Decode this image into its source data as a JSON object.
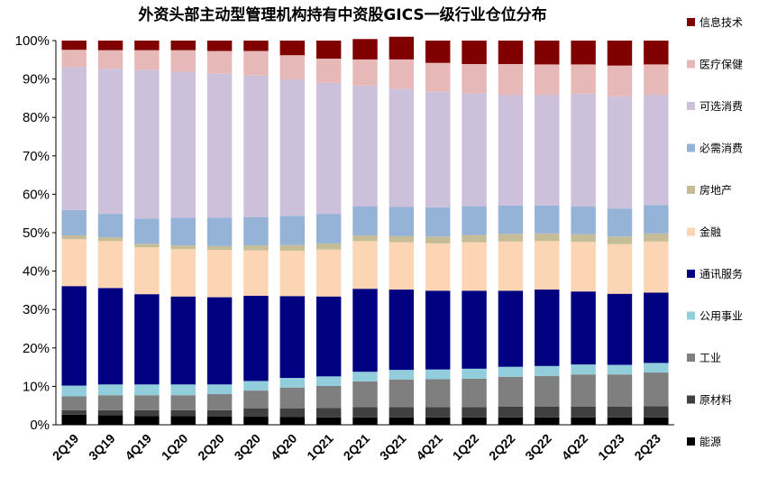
{
  "chart_data": {
    "type": "bar",
    "stacked": true,
    "title": "外资头部主动型管理机构持有中资股GICS一级行业仓位分布",
    "xlabel": "",
    "ylabel": "",
    "ylim": [
      0,
      100
    ],
    "y_ticks": [
      "0%",
      "10%",
      "20%",
      "30%",
      "40%",
      "50%",
      "60%",
      "70%",
      "80%",
      "90%",
      "100%"
    ],
    "categories": [
      "2Q19",
      "3Q19",
      "4Q19",
      "1Q20",
      "2Q20",
      "3Q20",
      "4Q20",
      "1Q21",
      "2Q21",
      "3Q21",
      "4Q21",
      "1Q22",
      "2Q22",
      "3Q22",
      "4Q22",
      "1Q23",
      "2Q23"
    ],
    "legend_position": "right",
    "series": [
      {
        "name": "能源",
        "color": "#000000",
        "values": [
          2.6,
          2.5,
          2.3,
          2.3,
          2.2,
          2.1,
          2.0,
          1.9,
          1.9,
          1.9,
          1.9,
          1.9,
          1.9,
          1.9,
          1.9,
          1.9,
          1.9
        ]
      },
      {
        "name": "原材料",
        "color": "#404040",
        "values": [
          1.2,
          1.3,
          1.5,
          1.5,
          1.6,
          2.2,
          2.3,
          2.5,
          2.7,
          2.7,
          2.7,
          2.7,
          2.8,
          2.8,
          2.8,
          2.8,
          2.9
        ]
      },
      {
        "name": "工业",
        "color": "#7f7f7f",
        "values": [
          3.6,
          3.9,
          3.9,
          3.9,
          4.2,
          4.6,
          5.4,
          5.7,
          6.7,
          7.2,
          7.3,
          7.4,
          7.8,
          8.0,
          8.4,
          8.4,
          8.8
        ]
      },
      {
        "name": "公用事业",
        "color": "#92cddc",
        "values": [
          2.8,
          2.8,
          2.8,
          2.8,
          2.5,
          2.5,
          2.5,
          2.5,
          2.5,
          2.5,
          2.5,
          2.6,
          2.6,
          2.6,
          2.6,
          2.5,
          2.5
        ]
      },
      {
        "name": "通讯服务",
        "color": "#000080",
        "values": [
          25.9,
          25.1,
          23.5,
          22.9,
          22.7,
          22.2,
          21.3,
          20.8,
          21.6,
          20.9,
          20.5,
          20.3,
          19.8,
          19.9,
          19.0,
          18.5,
          18.3
        ]
      },
      {
        "name": "金融",
        "color": "#fcd5b4",
        "values": [
          12.2,
          12.2,
          12.2,
          12.3,
          12.3,
          11.8,
          11.8,
          12.2,
          12.4,
          12.3,
          12.3,
          12.6,
          12.8,
          12.6,
          12.9,
          12.9,
          13.3
        ]
      },
      {
        "name": "房地产",
        "color": "#c4bd97",
        "values": [
          1.0,
          1.0,
          0.9,
          1.0,
          1.0,
          1.3,
          1.5,
          1.6,
          1.5,
          1.6,
          1.8,
          1.9,
          2.0,
          2.0,
          2.0,
          2.0,
          2.1
        ]
      },
      {
        "name": "必需消费",
        "color": "#95b3d7",
        "values": [
          6.6,
          6.1,
          6.6,
          7.2,
          7.4,
          7.3,
          7.6,
          7.7,
          7.6,
          7.6,
          7.6,
          7.5,
          7.4,
          7.3,
          7.2,
          7.3,
          7.4
        ]
      },
      {
        "name": "可选消费",
        "color": "#ccc0da",
        "values": [
          37.2,
          37.8,
          38.7,
          38.0,
          37.5,
          36.9,
          35.5,
          34.1,
          31.4,
          30.7,
          30.1,
          29.4,
          28.8,
          28.8,
          29.4,
          29.2,
          28.7
        ]
      },
      {
        "name": "医疗保健",
        "color": "#e6b9b8",
        "values": [
          4.5,
          4.8,
          5.1,
          5.6,
          5.9,
          6.4,
          6.3,
          6.3,
          6.8,
          7.7,
          7.5,
          7.6,
          8.0,
          7.9,
          7.6,
          8.0,
          7.9
        ]
      },
      {
        "name": "信息技术",
        "color": "#800000",
        "values": [
          2.4,
          2.5,
          2.5,
          2.5,
          2.7,
          2.7,
          3.8,
          4.7,
          5.3,
          5.9,
          5.8,
          6.1,
          6.1,
          6.2,
          6.2,
          6.5,
          6.2
        ]
      }
    ]
  }
}
